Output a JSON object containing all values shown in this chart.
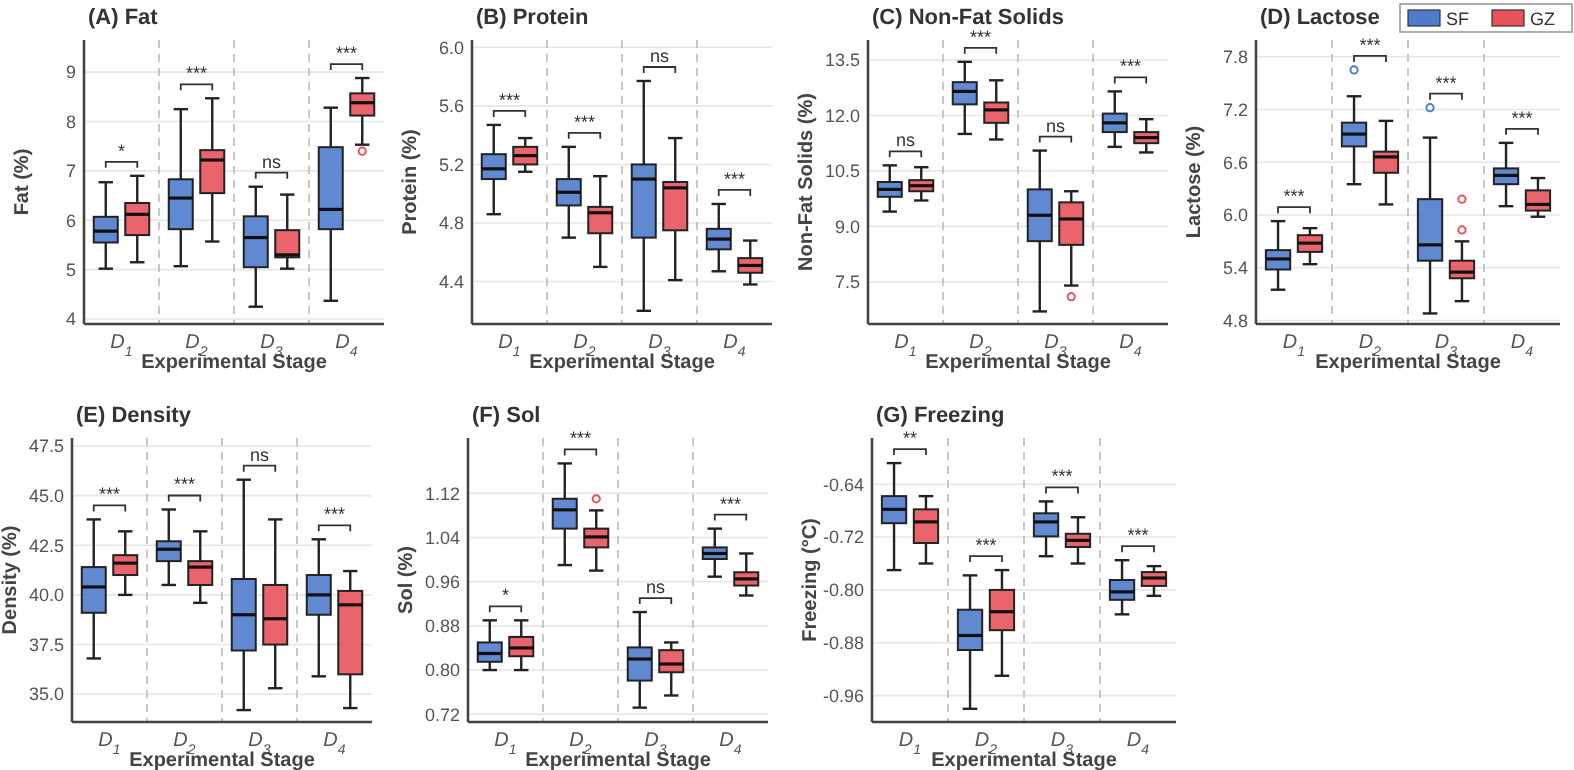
{
  "chart_data": [
    {
      "type": "box",
      "title": "(A) Fat",
      "xlabel": "Experimental Stage",
      "ylabel": "Fat (%)",
      "categories": [
        "D$_{1}$",
        "D$_{2}$",
        "D$_{3}$",
        "D$_{4}$"
      ],
      "ylim": [
        3.9,
        9.65
      ],
      "yticks": [
        4,
        5,
        6,
        7,
        8,
        9
      ],
      "grid": "y",
      "legend": false,
      "series": [
        {
          "color": "#4f7ccc",
          "boxes": [
            {
              "low": 5.02,
              "q1": 5.55,
              "median": 5.78,
              "q3": 6.07,
              "high": 6.77
            },
            {
              "low": 5.07,
              "q1": 5.82,
              "median": 6.45,
              "q3": 6.83,
              "high": 8.25
            },
            {
              "low": 4.25,
              "q1": 5.05,
              "median": 5.65,
              "q3": 6.08,
              "high": 6.68
            },
            {
              "low": 4.37,
              "q1": 5.82,
              "median": 6.22,
              "q3": 7.48,
              "high": 8.28
            }
          ]
        },
        {
          "color": "#e8535b",
          "boxes": [
            {
              "low": 5.15,
              "q1": 5.7,
              "median": 6.12,
              "q3": 6.35,
              "high": 6.9
            },
            {
              "low": 5.57,
              "q1": 6.55,
              "median": 7.22,
              "q3": 7.42,
              "high": 8.47
            },
            {
              "low": 5.02,
              "q1": 5.25,
              "median": 5.3,
              "q3": 5.8,
              "high": 6.52
            },
            {
              "low": 7.53,
              "q1": 8.12,
              "median": 8.38,
              "q3": 8.57,
              "high": 8.88,
              "outliers": [
                7.4
              ]
            }
          ]
        }
      ],
      "annotations": [
        "*",
        "***",
        "ns",
        "***"
      ]
    },
    {
      "type": "box",
      "title": "(B) Protein",
      "xlabel": "Experimental Stage",
      "ylabel": "Protein (%)",
      "categories": [
        "D$_{1}$",
        "D$_{2}$",
        "D$_{3}$",
        "D$_{4}$"
      ],
      "ylim": [
        4.11,
        6.05
      ],
      "yticks": [
        {
          "value": 4.4,
          "label": "4.4"
        },
        {
          "value": 4.8,
          "label": "4.8"
        },
        {
          "value": 5.2,
          "label": "5.2"
        },
        {
          "value": 5.6,
          "label": "5.6"
        },
        {
          "value": 6.0,
          "label": "6.0"
        }
      ],
      "grid": "y",
      "legend": false,
      "series": [
        {
          "color": "#4f7ccc",
          "boxes": [
            {
              "low": 4.86,
              "q1": 5.1,
              "median": 5.17,
              "q3": 5.27,
              "high": 5.47
            },
            {
              "low": 4.7,
              "q1": 4.92,
              "median": 5.01,
              "q3": 5.1,
              "high": 5.32
            },
            {
              "low": 4.2,
              "q1": 4.7,
              "median": 5.1,
              "q3": 5.2,
              "high": 5.77
            },
            {
              "low": 4.47,
              "q1": 4.62,
              "median": 4.69,
              "q3": 4.76,
              "high": 4.93
            }
          ]
        },
        {
          "color": "#e8535b",
          "boxes": [
            {
              "low": 5.15,
              "q1": 5.2,
              "median": 5.26,
              "q3": 5.32,
              "high": 5.38
            },
            {
              "low": 4.5,
              "q1": 4.73,
              "median": 4.87,
              "q3": 4.91,
              "high": 5.12
            },
            {
              "low": 4.41,
              "q1": 4.75,
              "median": 5.04,
              "q3": 5.08,
              "high": 5.38
            },
            {
              "low": 4.38,
              "q1": 4.46,
              "median": 4.51,
              "q3": 4.56,
              "high": 4.68
            }
          ]
        }
      ],
      "annotations": [
        "***",
        "***",
        "ns",
        "***"
      ]
    },
    {
      "type": "box",
      "title": "(C) Non-Fat Solids",
      "xlabel": "Experimental Stage",
      "ylabel": "Non-Fat Solids (%)",
      "categories": [
        "D$_{1}$",
        "D$_{2}$",
        "D$_{3}$",
        "D$_{4}$"
      ],
      "ylim": [
        6.36,
        14.04
      ],
      "yticks": [
        7.5,
        {
          "value": 9,
          "label": "9.0"
        },
        10.5,
        {
          "value": 12,
          "label": "12.0"
        },
        13.5
      ],
      "grid": "y",
      "legend": false,
      "series": [
        {
          "color": "#4f7ccc",
          "boxes": [
            {
              "low": 9.4,
              "q1": 9.8,
              "median": 10.0,
              "q3": 10.2,
              "high": 10.65
            },
            {
              "low": 11.5,
              "q1": 12.3,
              "median": 12.65,
              "q3": 12.9,
              "high": 13.45
            },
            {
              "low": 6.7,
              "q1": 8.6,
              "median": 9.3,
              "q3": 10.0,
              "high": 11.05
            },
            {
              "low": 11.15,
              "q1": 11.55,
              "median": 11.8,
              "q3": 12.05,
              "high": 12.65
            }
          ]
        },
        {
          "color": "#e8535b",
          "boxes": [
            {
              "low": 9.7,
              "q1": 9.95,
              "median": 10.1,
              "q3": 10.25,
              "high": 10.6
            },
            {
              "low": 11.35,
              "q1": 11.8,
              "median": 12.15,
              "q3": 12.35,
              "high": 12.95
            },
            {
              "low": 7.4,
              "q1": 8.5,
              "median": 9.2,
              "q3": 9.65,
              "high": 9.95,
              "outliers": [
                7.1
              ]
            },
            {
              "low": 11.0,
              "q1": 11.25,
              "median": 11.4,
              "q3": 11.55,
              "high": 11.9
            }
          ]
        }
      ],
      "annotations": [
        "ns",
        "***",
        "ns",
        "***"
      ]
    },
    {
      "type": "box",
      "title": "(D) Lactose",
      "xlabel": "Experimental Stage",
      "ylabel": "Lactose (%)",
      "categories": [
        "D$_{1}$",
        "D$_{2}$",
        "D$_{3}$",
        "D$_{4}$"
      ],
      "ylim": [
        4.76,
        7.99
      ],
      "yticks": [
        4.8,
        5.4,
        {
          "value": 6,
          "label": "6.0"
        },
        6.6,
        7.2,
        7.8
      ],
      "grid": "y",
      "legend": "top right",
      "series": [
        {
          "name": "SF",
          "color": "#4f7ccc",
          "boxes": [
            {
              "low": 5.15,
              "q1": 5.38,
              "median": 5.5,
              "q3": 5.6,
              "high": 5.93
            },
            {
              "low": 6.35,
              "q1": 6.78,
              "median": 6.92,
              "q3": 7.05,
              "high": 7.35,
              "outliers": [
                7.65
              ]
            },
            {
              "low": 4.88,
              "q1": 5.48,
              "median": 5.66,
              "q3": 6.18,
              "high": 6.88,
              "outliers": [
                7.22
              ]
            },
            {
              "low": 6.1,
              "q1": 6.35,
              "median": 6.45,
              "q3": 6.53,
              "high": 6.82
            }
          ]
        },
        {
          "name": "GZ",
          "color": "#e8535b",
          "boxes": [
            {
              "low": 5.44,
              "q1": 5.58,
              "median": 5.68,
              "q3": 5.77,
              "high": 5.85
            },
            {
              "low": 6.12,
              "q1": 6.48,
              "median": 6.66,
              "q3": 6.72,
              "high": 7.07
            },
            {
              "low": 5.02,
              "q1": 5.28,
              "median": 5.35,
              "q3": 5.48,
              "high": 5.7,
              "outliers": [
                5.83,
                6.18
              ]
            },
            {
              "low": 5.98,
              "q1": 6.05,
              "median": 6.12,
              "q3": 6.28,
              "high": 6.42
            }
          ]
        }
      ],
      "annotations": [
        "***",
        "***",
        "***",
        "***"
      ]
    },
    {
      "type": "box",
      "title": "(E) Density",
      "xlabel": "Experimental Stage",
      "ylabel": "Density (%)",
      "categories": [
        "D$_{1}$",
        "D$_{2}$",
        "D$_{3}$",
        "D$_{4}$"
      ],
      "ylim": [
        33.6,
        47.9
      ],
      "yticks": [
        {
          "value": 35,
          "label": "35.0"
        },
        37.5,
        {
          "value": 40,
          "label": "40.0"
        },
        42.5,
        {
          "value": 45,
          "label": "45.0"
        },
        47.5
      ],
      "grid": "y",
      "legend": false,
      "series": [
        {
          "color": "#4f7ccc",
          "boxes": [
            {
              "low": 36.8,
              "q1": 39.1,
              "median": 40.4,
              "q3": 41.4,
              "high": 43.8
            },
            {
              "low": 40.5,
              "q1": 41.7,
              "median": 42.3,
              "q3": 42.7,
              "high": 44.3
            },
            {
              "low": 34.2,
              "q1": 37.2,
              "median": 39.0,
              "q3": 40.8,
              "high": 45.8
            },
            {
              "low": 35.9,
              "q1": 39.0,
              "median": 40.0,
              "q3": 41.0,
              "high": 42.8
            }
          ]
        },
        {
          "color": "#e8535b",
          "boxes": [
            {
              "low": 40.0,
              "q1": 41.0,
              "median": 41.6,
              "q3": 42.0,
              "high": 43.2
            },
            {
              "low": 39.6,
              "q1": 40.5,
              "median": 41.4,
              "q3": 41.7,
              "high": 43.2
            },
            {
              "low": 35.3,
              "q1": 37.5,
              "median": 38.8,
              "q3": 40.5,
              "high": 43.8
            },
            {
              "low": 34.3,
              "q1": 36.0,
              "median": 39.5,
              "q3": 40.2,
              "high": 41.2
            }
          ]
        }
      ],
      "annotations": [
        "***",
        "***",
        "ns",
        "***"
      ]
    },
    {
      "type": "box",
      "title": "(F) Sol",
      "xlabel": "Experimental Stage",
      "ylabel": "Sol (%)",
      "categories": [
        "D$_{1}$",
        "D$_{2}$",
        "D$_{3}$",
        "D$_{4}$"
      ],
      "ylim": [
        0.706,
        1.22
      ],
      "yticks": [
        0.72,
        {
          "value": 0.8,
          "label": "0.80"
        },
        0.88,
        0.96,
        1.04,
        1.12
      ],
      "grid": "y",
      "legend": false,
      "series": [
        {
          "color": "#4f7ccc",
          "boxes": [
            {
              "low": 0.8,
              "q1": 0.815,
              "median": 0.83,
              "q3": 0.85,
              "high": 0.89
            },
            {
              "low": 0.99,
              "q1": 1.056,
              "median": 1.09,
              "q3": 1.11,
              "high": 1.174
            },
            {
              "low": 0.732,
              "q1": 0.781,
              "median": 0.82,
              "q3": 0.841,
              "high": 0.905
            },
            {
              "low": 0.969,
              "q1": 1.001,
              "median": 1.011,
              "q3": 1.022,
              "high": 1.056
            }
          ]
        },
        {
          "color": "#e8535b",
          "boxes": [
            {
              "low": 0.8,
              "q1": 0.825,
              "median": 0.84,
              "q3": 0.86,
              "high": 0.89
            },
            {
              "low": 0.98,
              "q1": 1.022,
              "median": 1.041,
              "q3": 1.056,
              "high": 1.089,
              "outliers": [
                1.11
              ]
            },
            {
              "low": 0.754,
              "q1": 0.796,
              "median": 0.811,
              "q3": 0.836,
              "high": 0.85
            },
            {
              "low": 0.935,
              "q1": 0.953,
              "median": 0.965,
              "q3": 0.977,
              "high": 1.011
            }
          ]
        }
      ],
      "annotations": [
        "*",
        "***",
        "ns",
        "***"
      ]
    },
    {
      "type": "box",
      "title": "(G) Freezing",
      "xlabel": "Experimental Stage",
      "ylabel": "Freezing (°C)",
      "categories": [
        "D$_{1}$",
        "D$_{2}$",
        "D$_{3}$",
        "D$_{4}$"
      ],
      "ylim": [
        -1.0,
        -0.57
      ],
      "yticks": [
        -0.96,
        -0.88,
        {
          "value": -0.8,
          "label": "-0.80"
        },
        -0.72,
        -0.64
      ],
      "grid": "y",
      "legend": false,
      "series": [
        {
          "color": "#4f7ccc",
          "boxes": [
            {
              "low": -0.77,
              "q1": -0.699,
              "median": -0.678,
              "q3": -0.658,
              "high": -0.608
            },
            {
              "low": -0.98,
              "q1": -0.891,
              "median": -0.869,
              "q3": -0.83,
              "high": -0.778
            },
            {
              "low": -0.749,
              "q1": -0.719,
              "median": -0.697,
              "q3": -0.684,
              "high": -0.666
            },
            {
              "low": -0.837,
              "q1": -0.815,
              "median": -0.803,
              "q3": -0.785,
              "high": -0.755
            }
          ]
        },
        {
          "color": "#e8535b",
          "boxes": [
            {
              "low": -0.76,
              "q1": -0.729,
              "median": -0.697,
              "q3": -0.678,
              "high": -0.658
            },
            {
              "low": -0.93,
              "q1": -0.861,
              "median": -0.833,
              "q3": -0.8,
              "high": -0.77
            },
            {
              "low": -0.76,
              "q1": -0.735,
              "median": -0.725,
              "q3": -0.715,
              "high": -0.69
            },
            {
              "low": -0.809,
              "q1": -0.794,
              "median": -0.782,
              "q3": -0.773,
              "high": -0.764
            }
          ]
        }
      ],
      "annotations": [
        "**",
        "***",
        "***",
        "***"
      ]
    }
  ]
}
